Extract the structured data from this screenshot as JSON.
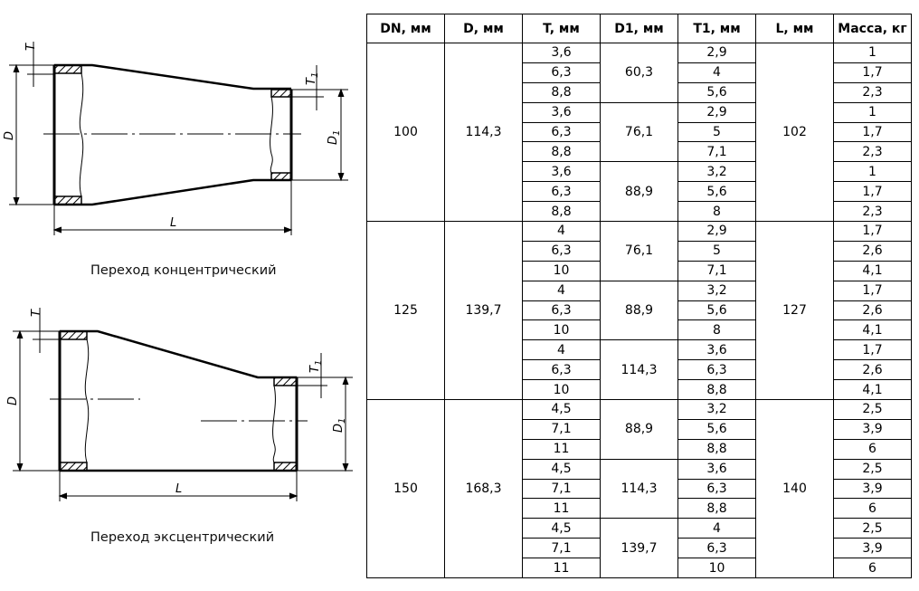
{
  "drawings": {
    "concentric": {
      "caption": "Переход концентрический",
      "labels": {
        "t": "T",
        "d": "D",
        "l": "L",
        "d1": "D",
        "d1_sub": "1",
        "t1": "T",
        "t1_sub": "1"
      }
    },
    "eccentric": {
      "caption": "Переход эксцентрический",
      "labels": {
        "t": "T",
        "d": "D",
        "l": "L",
        "d1": "D",
        "d1_sub": "1",
        "t1": "T",
        "t1_sub": "1"
      }
    }
  },
  "table": {
    "headers": [
      "DN, мм",
      "D, мм",
      "T, мм",
      "D1, мм",
      "T1, мм",
      "L, мм",
      "Масса, кг"
    ],
    "groups": [
      {
        "dn": "100",
        "d": "114,3",
        "l": "102",
        "sub": [
          {
            "d1": "60,3",
            "rows": [
              [
                "3,6",
                "2,9",
                "1"
              ],
              [
                "6,3",
                "4",
                "1,7"
              ],
              [
                "8,8",
                "5,6",
                "2,3"
              ]
            ]
          },
          {
            "d1": "76,1",
            "rows": [
              [
                "3,6",
                "2,9",
                "1"
              ],
              [
                "6,3",
                "5",
                "1,7"
              ],
              [
                "8,8",
                "7,1",
                "2,3"
              ]
            ]
          },
          {
            "d1": "88,9",
            "rows": [
              [
                "3,6",
                "3,2",
                "1"
              ],
              [
                "6,3",
                "5,6",
                "1,7"
              ],
              [
                "8,8",
                "8",
                "2,3"
              ]
            ]
          }
        ]
      },
      {
        "dn": "125",
        "d": "139,7",
        "l": "127",
        "sub": [
          {
            "d1": "76,1",
            "rows": [
              [
                "4",
                "2,9",
                "1,7"
              ],
              [
                "6,3",
                "5",
                "2,6"
              ],
              [
                "10",
                "7,1",
                "4,1"
              ]
            ]
          },
          {
            "d1": "88,9",
            "rows": [
              [
                "4",
                "3,2",
                "1,7"
              ],
              [
                "6,3",
                "5,6",
                "2,6"
              ],
              [
                "10",
                "8",
                "4,1"
              ]
            ]
          },
          {
            "d1": "114,3",
            "rows": [
              [
                "4",
                "3,6",
                "1,7"
              ],
              [
                "6,3",
                "6,3",
                "2,6"
              ],
              [
                "10",
                "8,8",
                "4,1"
              ]
            ]
          }
        ]
      },
      {
        "dn": "150",
        "d": "168,3",
        "l": "140",
        "sub": [
          {
            "d1": "88,9",
            "rows": [
              [
                "4,5",
                "3,2",
                "2,5"
              ],
              [
                "7,1",
                "5,6",
                "3,9"
              ],
              [
                "11",
                "8,8",
                "6"
              ]
            ]
          },
          {
            "d1": "114,3",
            "rows": [
              [
                "4,5",
                "3,6",
                "2,5"
              ],
              [
                "7,1",
                "6,3",
                "3,9"
              ],
              [
                "11",
                "8,8",
                "6"
              ]
            ]
          },
          {
            "d1": "139,7",
            "rows": [
              [
                "4,5",
                "4",
                "2,5"
              ],
              [
                "7,1",
                "6,3",
                "3,9"
              ],
              [
                "11",
                "10",
                "6"
              ]
            ]
          }
        ]
      }
    ]
  }
}
